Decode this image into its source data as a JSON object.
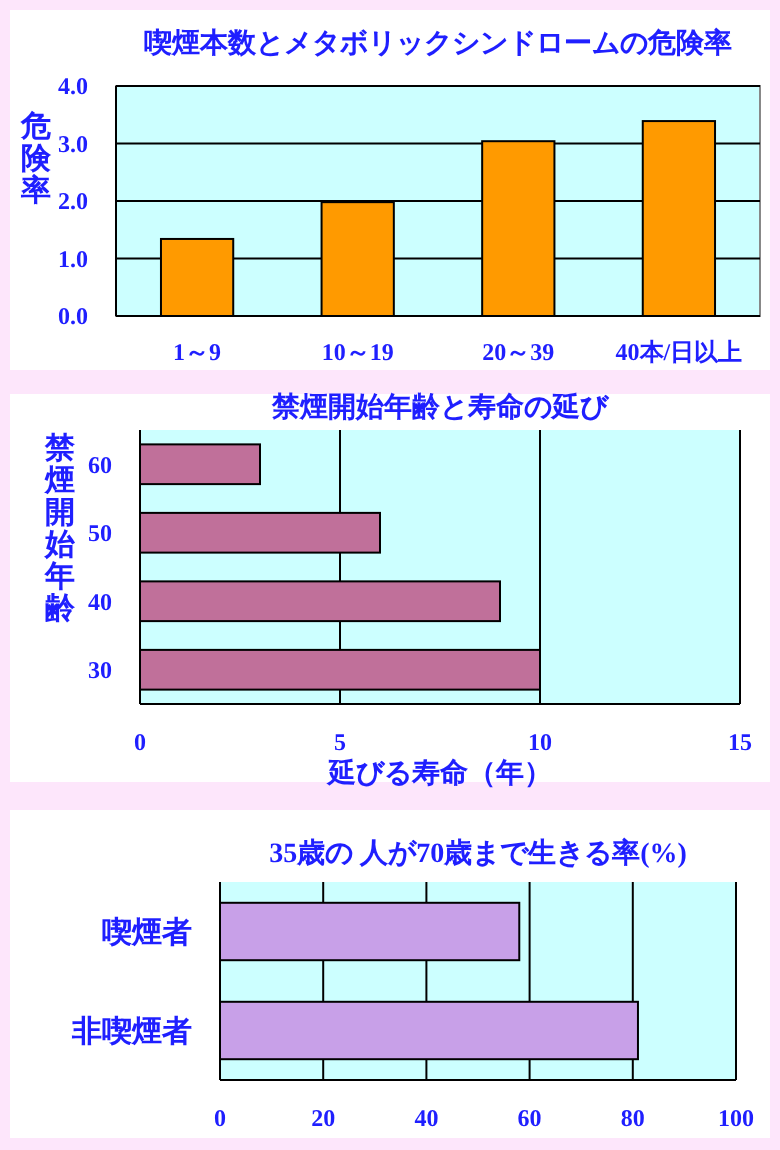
{
  "chart_data": [
    {
      "type": "bar",
      "title": "喫煙本数とメタボリックシンドロームの危険率",
      "ylabel": "危険率",
      "categories": [
        "1～9",
        "10～19",
        "20～39",
        "40本/日以上"
      ],
      "values": [
        1.34,
        1.98,
        3.04,
        3.39
      ],
      "color": "#ff9a00",
      "ylim": [
        0,
        4
      ],
      "yticks": [
        {
          "value": 0,
          "label": "0.0"
        },
        {
          "value": 1,
          "label": "1.0"
        },
        {
          "value": 2,
          "label": "2.0"
        },
        {
          "value": 3,
          "label": "3.0"
        },
        {
          "value": 4,
          "label": "4.0"
        }
      ],
      "grid": "y"
    },
    {
      "type": "bar",
      "orientation": "horizontal",
      "title": "禁煙開始年齢と寿命の延び",
      "xlabel": "延びる寿命（年）",
      "ylabel": "禁煙開始年齢",
      "categories": [
        "60",
        "50",
        "40",
        "30"
      ],
      "values": [
        3,
        6,
        9,
        10
      ],
      "color": "#c0709a",
      "xlim": [
        0,
        15
      ],
      "xticks": [
        0,
        5,
        10,
        15
      ],
      "grid": "x"
    },
    {
      "type": "bar",
      "orientation": "horizontal",
      "title": "35歳の 人が70歳まで生きる率(%)",
      "categories": [
        "喫煙者",
        "非喫煙者"
      ],
      "values": [
        58,
        81
      ],
      "color": "#c8a0e8",
      "xlim": [
        0,
        100
      ],
      "xticks": [
        0,
        20,
        40,
        60,
        80,
        100
      ],
      "grid": "x"
    }
  ]
}
